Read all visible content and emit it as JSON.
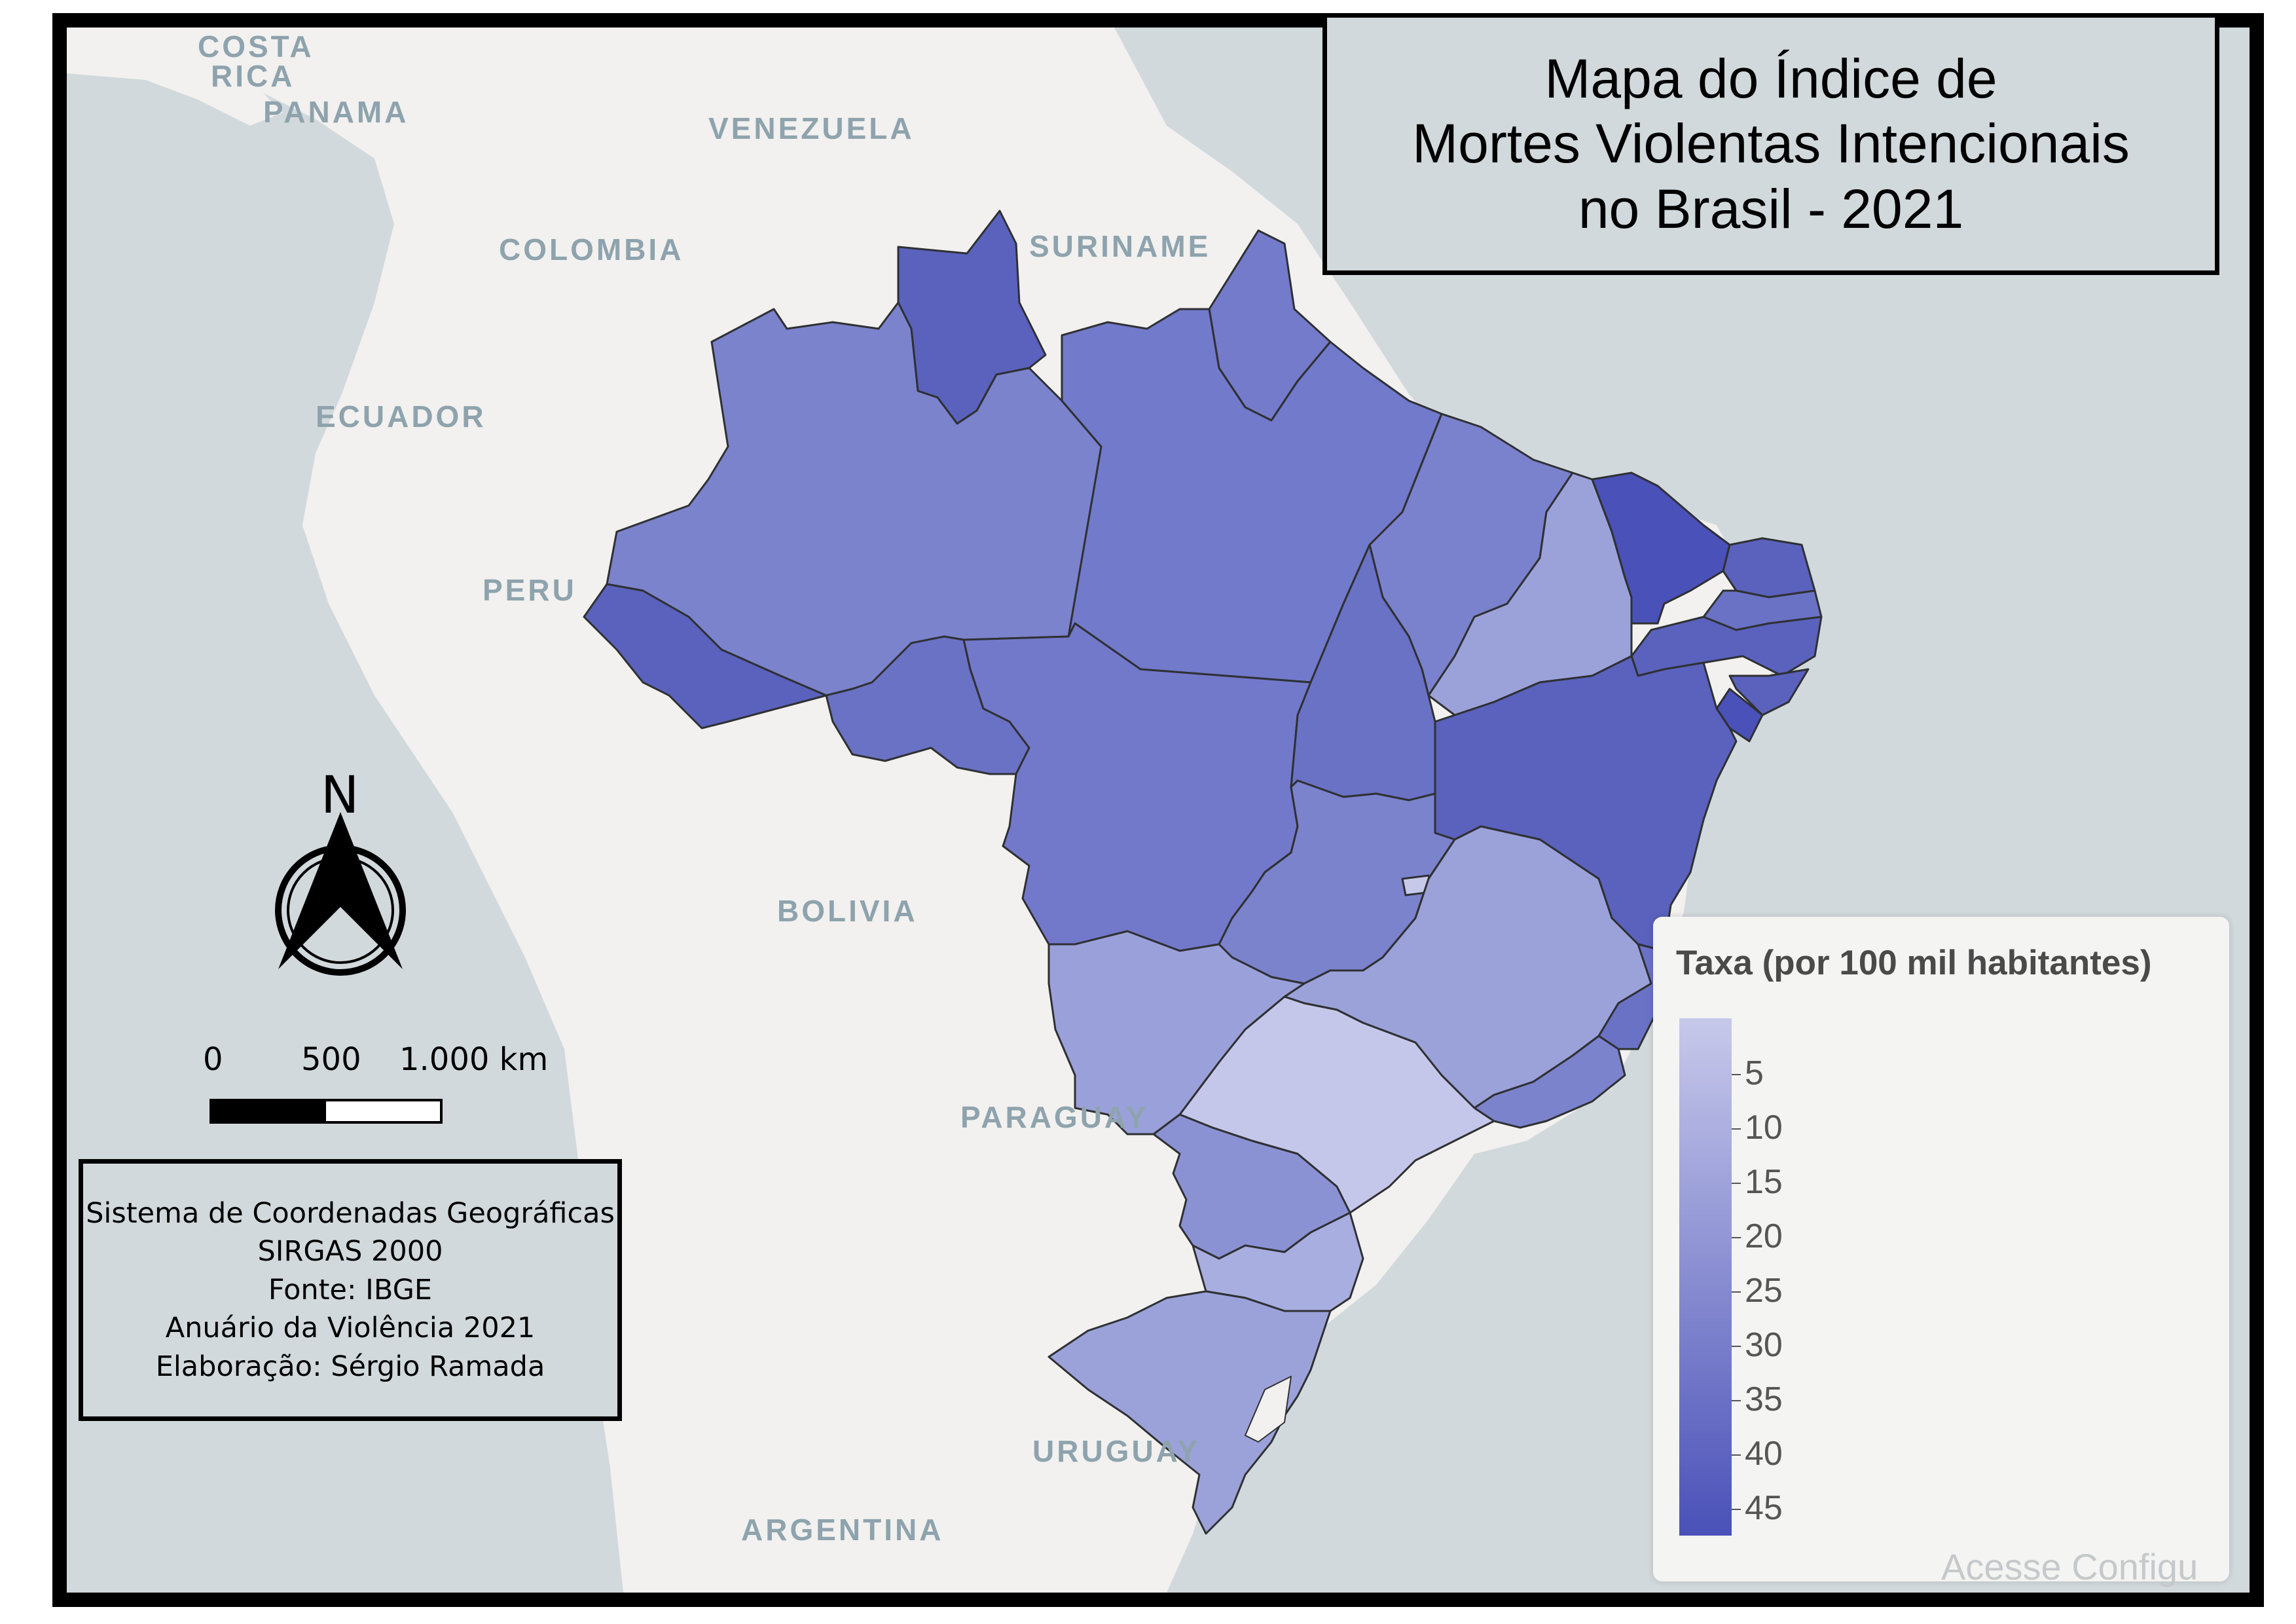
{
  "title": {
    "line1": "Mapa do Índice de",
    "line2": "Mortes Violentas Intencionais",
    "line3": "no Brasil - 2021"
  },
  "countries": {
    "costa_rica_1": "COSTA",
    "costa_rica_2": "RICA",
    "panama": "PANAMA",
    "venezuela": "VENEZUELA",
    "colombia": "COLOMBIA",
    "suriname": "SURINAME",
    "ecuador": "ECUADOR",
    "peru": "PERU",
    "bolivia": "BOLIVIA",
    "paraguay": "PARAGUAY",
    "uruguay": "URUGUAY",
    "argentina": "ARGENTINA"
  },
  "legend": {
    "title": "Taxa (por 100 mil habitantes)",
    "ticks": [
      "5",
      "10",
      "15",
      "20",
      "25",
      "30",
      "35",
      "40",
      "45"
    ],
    "color_low": "#c7c9ea",
    "color_high": "#4a51b8"
  },
  "north_arrow": {
    "label": "N"
  },
  "scale": {
    "labels": [
      "0",
      "500",
      "1.000 km"
    ]
  },
  "info": {
    "line1": "Sistema de Coordenadas Geográficas",
    "line2": "SIRGAS 2000",
    "line3": "Fonte: IBGE",
    "line4": "Anuário da Violência 2021",
    "line5": "Elaboração: Sérgio Ramada"
  },
  "watermark": "Acesse Configu",
  "colors": {
    "ocean": "#d2d9dc",
    "land": "#f2f1ef",
    "border": "#2f3033"
  }
}
